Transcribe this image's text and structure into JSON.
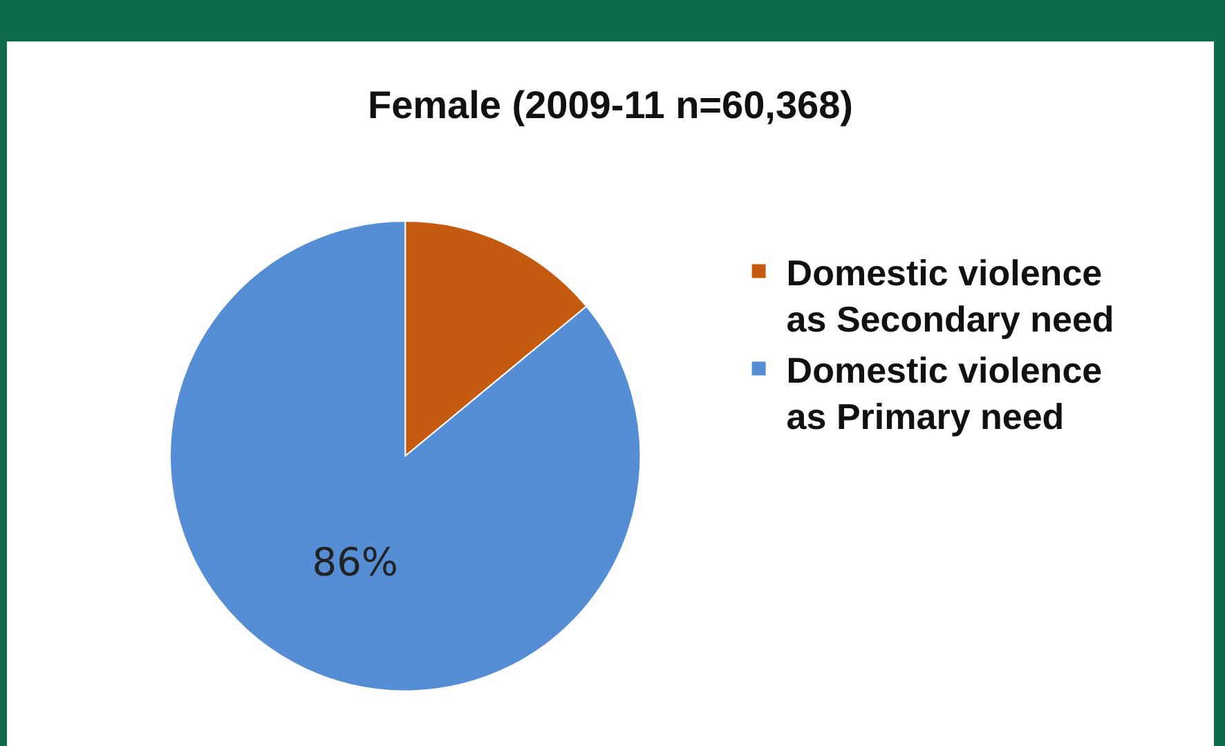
{
  "chart_data": {
    "type": "pie",
    "title": "Female (2009-11 n=60,368)",
    "categories": [
      "Domestic violence as Secondary need",
      "Domestic violence as Primary need"
    ],
    "values": [
      14,
      86
    ],
    "colors": [
      "#c55a11",
      "#558ed5"
    ],
    "value_labels": [
      null,
      "86%"
    ],
    "legend": "right"
  }
}
